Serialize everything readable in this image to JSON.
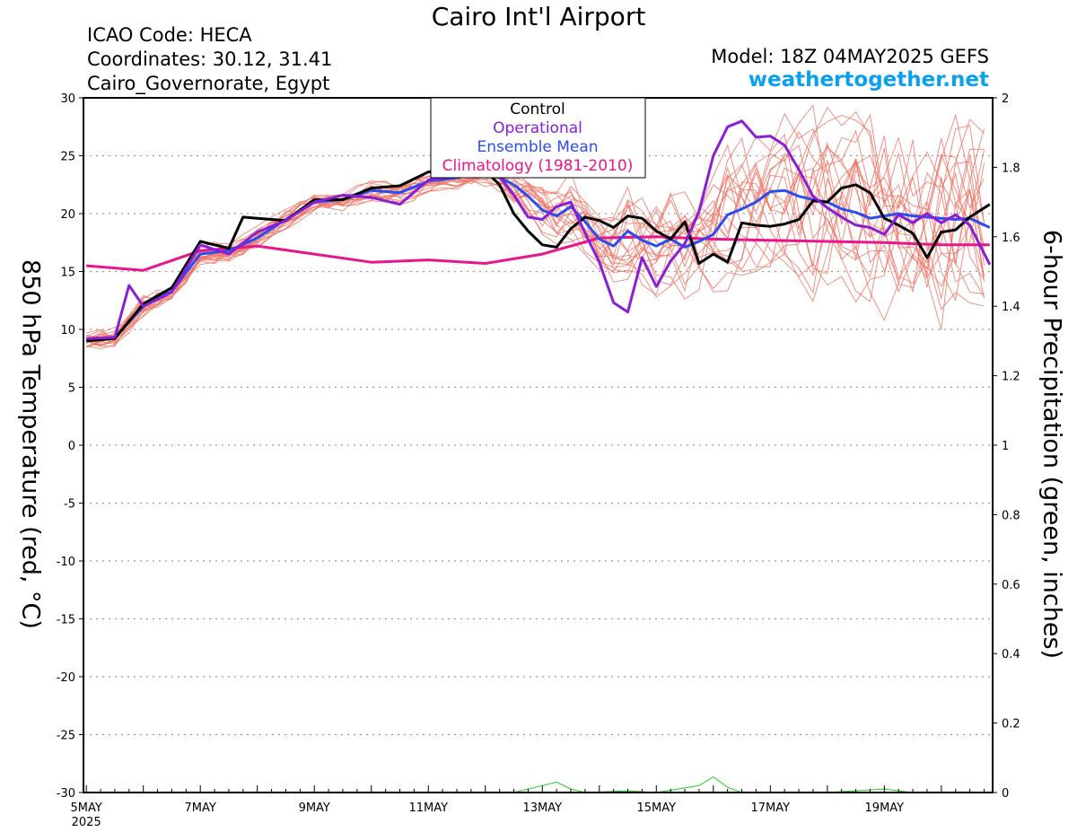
{
  "header": {
    "title": "Cairo Int'l Airport",
    "icao": "ICAO Code: HECA",
    "coords": "Coordinates: 30.12, 31.41",
    "region": "Cairo_Governorate, Egypt",
    "model": "Model: 18Z 04MAY2025 GEFS",
    "site": "weathertogether.net"
  },
  "chart_data": {
    "type": "line",
    "ylabel": "850 hPa Temperature (red, °C)",
    "y2label": "6-hour Precipitation (green, inches)",
    "x_unit": "days since 5 MAY 2025 00Z",
    "xlim": [
      -0.05,
      15.9
    ],
    "ylim": [
      -30,
      30
    ],
    "y2lim": [
      0,
      2
    ],
    "yticks": [
      30,
      25,
      20,
      15,
      10,
      5,
      0,
      -5,
      -10,
      -15,
      -20,
      -25,
      -30
    ],
    "y2ticks": [
      "2",
      "1.8",
      "1.6",
      "1.4",
      "1.2",
      "1",
      "0.8",
      "0.6",
      "0.4",
      "0.2",
      "0"
    ],
    "xticks": [
      {
        "x": 0,
        "label": "5MAY"
      },
      {
        "x": 2,
        "label": "7MAY"
      },
      {
        "x": 4,
        "label": "9MAY"
      },
      {
        "x": 6,
        "label": "11MAY"
      },
      {
        "x": 8,
        "label": "13MAY"
      },
      {
        "x": 10,
        "label": "15MAY"
      },
      {
        "x": 12,
        "label": "17MAY"
      },
      {
        "x": 14,
        "label": "19MAY"
      }
    ],
    "xyear": "2025",
    "grid": true,
    "legend_position": "top-center",
    "legend": [
      {
        "label": "Control",
        "color": "#000000"
      },
      {
        "label": "Operational",
        "color": "#8a1ed6"
      },
      {
        "label": "Ensemble Mean",
        "color": "#2a4df0"
      },
      {
        "label": "Climatology (1981-2010)",
        "color": "#e8168a"
      }
    ],
    "series": [
      {
        "name": "Climatology (1981-2010)",
        "color": "#e8168a",
        "width": 3,
        "points": [
          [
            0,
            15.5
          ],
          [
            1,
            15.1
          ],
          [
            2,
            16.8
          ],
          [
            3,
            17.2
          ],
          [
            4,
            16.5
          ],
          [
            5,
            15.8
          ],
          [
            6,
            16.0
          ],
          [
            7,
            15.7
          ],
          [
            8,
            16.5
          ],
          [
            9,
            17.9
          ],
          [
            10,
            18.0
          ],
          [
            11,
            17.8
          ],
          [
            12,
            17.7
          ],
          [
            13,
            17.6
          ],
          [
            14,
            17.5
          ],
          [
            15,
            17.3
          ],
          [
            15.85,
            17.3
          ]
        ]
      },
      {
        "name": "Ensemble Mean",
        "color": "#2a4df0",
        "width": 3,
        "points": [
          [
            0,
            9.1
          ],
          [
            0.5,
            9.3
          ],
          [
            1,
            12.0
          ],
          [
            1.5,
            13.3
          ],
          [
            2,
            16.5
          ],
          [
            2.5,
            16.8
          ],
          [
            3,
            17.9
          ],
          [
            3.5,
            19.5
          ],
          [
            4,
            21.0
          ],
          [
            4.5,
            21.2
          ],
          [
            5,
            22.0
          ],
          [
            5.5,
            21.8
          ],
          [
            6,
            22.8
          ],
          [
            6.5,
            23.1
          ],
          [
            7,
            23.5
          ],
          [
            7.25,
            23.1
          ],
          [
            7.5,
            22.5
          ],
          [
            7.75,
            21.5
          ],
          [
            8,
            20.3
          ],
          [
            8.25,
            19.8
          ],
          [
            8.5,
            20.6
          ],
          [
            8.75,
            19.3
          ],
          [
            9,
            17.8
          ],
          [
            9.25,
            17.2
          ],
          [
            9.5,
            18.5
          ],
          [
            9.75,
            17.7
          ],
          [
            10,
            17.2
          ],
          [
            10.25,
            17.8
          ],
          [
            10.5,
            17.1
          ],
          [
            10.75,
            17.6
          ],
          [
            11,
            18.2
          ],
          [
            11.25,
            19.9
          ],
          [
            11.5,
            20.4
          ],
          [
            11.75,
            21.0
          ],
          [
            12,
            21.9
          ],
          [
            12.25,
            22.0
          ],
          [
            12.5,
            21.5
          ],
          [
            12.75,
            21.2
          ],
          [
            13,
            21.0
          ],
          [
            13.25,
            20.4
          ],
          [
            13.5,
            20.1
          ],
          [
            13.75,
            19.6
          ],
          [
            14,
            19.8
          ],
          [
            14.25,
            20.0
          ],
          [
            14.5,
            19.8
          ],
          [
            14.75,
            19.7
          ],
          [
            15,
            19.6
          ],
          [
            15.25,
            19.5
          ],
          [
            15.5,
            19.6
          ],
          [
            15.85,
            18.8
          ]
        ]
      },
      {
        "name": "Control",
        "color": "#000000",
        "width": 3,
        "points": [
          [
            0,
            9.0
          ],
          [
            0.5,
            9.2
          ],
          [
            1,
            12.2
          ],
          [
            1.5,
            13.6
          ],
          [
            2,
            17.6
          ],
          [
            2.5,
            17.0
          ],
          [
            2.75,
            19.7
          ],
          [
            3,
            19.6
          ],
          [
            3.5,
            19.4
          ],
          [
            4,
            21.2
          ],
          [
            4.5,
            21.2
          ],
          [
            5,
            22.2
          ],
          [
            5.5,
            22.4
          ],
          [
            6,
            23.6
          ],
          [
            6.5,
            23.9
          ],
          [
            7,
            23.7
          ],
          [
            7.25,
            22.5
          ],
          [
            7.5,
            20.0
          ],
          [
            7.75,
            18.5
          ],
          [
            8,
            17.3
          ],
          [
            8.25,
            17.1
          ],
          [
            8.5,
            18.7
          ],
          [
            8.75,
            19.7
          ],
          [
            9,
            19.4
          ],
          [
            9.25,
            18.8
          ],
          [
            9.5,
            19.8
          ],
          [
            9.75,
            19.6
          ],
          [
            10,
            18.5
          ],
          [
            10.25,
            17.8
          ],
          [
            10.5,
            19.3
          ],
          [
            10.75,
            15.7
          ],
          [
            11,
            16.5
          ],
          [
            11.25,
            15.8
          ],
          [
            11.5,
            19.2
          ],
          [
            11.75,
            19.0
          ],
          [
            12,
            18.9
          ],
          [
            12.25,
            19.1
          ],
          [
            12.5,
            19.5
          ],
          [
            12.75,
            21.1
          ],
          [
            13,
            21.0
          ],
          [
            13.25,
            22.2
          ],
          [
            13.5,
            22.5
          ],
          [
            13.75,
            21.8
          ],
          [
            14,
            19.6
          ],
          [
            14.25,
            19.0
          ],
          [
            14.5,
            18.3
          ],
          [
            14.75,
            16.2
          ],
          [
            15,
            18.4
          ],
          [
            15.25,
            18.6
          ],
          [
            15.5,
            19.7
          ],
          [
            15.85,
            20.8
          ]
        ]
      },
      {
        "name": "Operational",
        "color": "#8a1ed6",
        "width": 3,
        "points": [
          [
            0,
            9.2
          ],
          [
            0.5,
            9.3
          ],
          [
            0.75,
            13.8
          ],
          [
            1,
            12.0
          ],
          [
            1.5,
            13.2
          ],
          [
            2,
            17.3
          ],
          [
            2.5,
            16.5
          ],
          [
            3,
            18.4
          ],
          [
            3.5,
            19.4
          ],
          [
            4,
            21.0
          ],
          [
            4.5,
            21.6
          ],
          [
            5,
            21.4
          ],
          [
            5.5,
            20.8
          ],
          [
            6,
            22.9
          ],
          [
            6.5,
            23.3
          ],
          [
            7,
            24.0
          ],
          [
            7.25,
            23.2
          ],
          [
            7.5,
            21.6
          ],
          [
            7.75,
            19.7
          ],
          [
            8,
            19.5
          ],
          [
            8.25,
            20.6
          ],
          [
            8.5,
            21.0
          ],
          [
            8.75,
            18.3
          ],
          [
            9,
            15.8
          ],
          [
            9.25,
            12.3
          ],
          [
            9.5,
            11.5
          ],
          [
            9.75,
            16.2
          ],
          [
            10,
            13.7
          ],
          [
            10.25,
            15.9
          ],
          [
            10.5,
            17.4
          ],
          [
            10.75,
            20.2
          ],
          [
            11,
            25.0
          ],
          [
            11.25,
            27.5
          ],
          [
            11.5,
            28.0
          ],
          [
            11.75,
            26.6
          ],
          [
            12,
            26.7
          ],
          [
            12.25,
            25.9
          ],
          [
            12.5,
            23.8
          ],
          [
            12.75,
            21.5
          ],
          [
            13,
            20.5
          ],
          [
            13.25,
            19.7
          ],
          [
            13.5,
            19.0
          ],
          [
            13.75,
            18.8
          ],
          [
            14,
            18.2
          ],
          [
            14.25,
            19.9
          ],
          [
            14.5,
            19.2
          ],
          [
            14.75,
            20.0
          ],
          [
            15,
            19.2
          ],
          [
            15.25,
            19.9
          ],
          [
            15.5,
            19.0
          ],
          [
            15.85,
            15.6
          ]
        ]
      }
    ],
    "precip_series": {
      "name": "6-hour Precipitation",
      "color": "#22cc22",
      "points": [
        [
          0,
          0
        ],
        [
          7.5,
          0
        ],
        [
          8,
          0.02
        ],
        [
          8.25,
          0.03
        ],
        [
          8.5,
          0.01
        ],
        [
          8.75,
          0
        ],
        [
          9.5,
          0.005
        ],
        [
          10,
          0
        ],
        [
          10.75,
          0.02
        ],
        [
          11,
          0.045
        ],
        [
          11.25,
          0.015
        ],
        [
          11.5,
          0
        ],
        [
          13,
          0
        ],
        [
          14,
          0.01
        ],
        [
          14.5,
          0
        ],
        [
          15.85,
          0
        ]
      ]
    }
  }
}
